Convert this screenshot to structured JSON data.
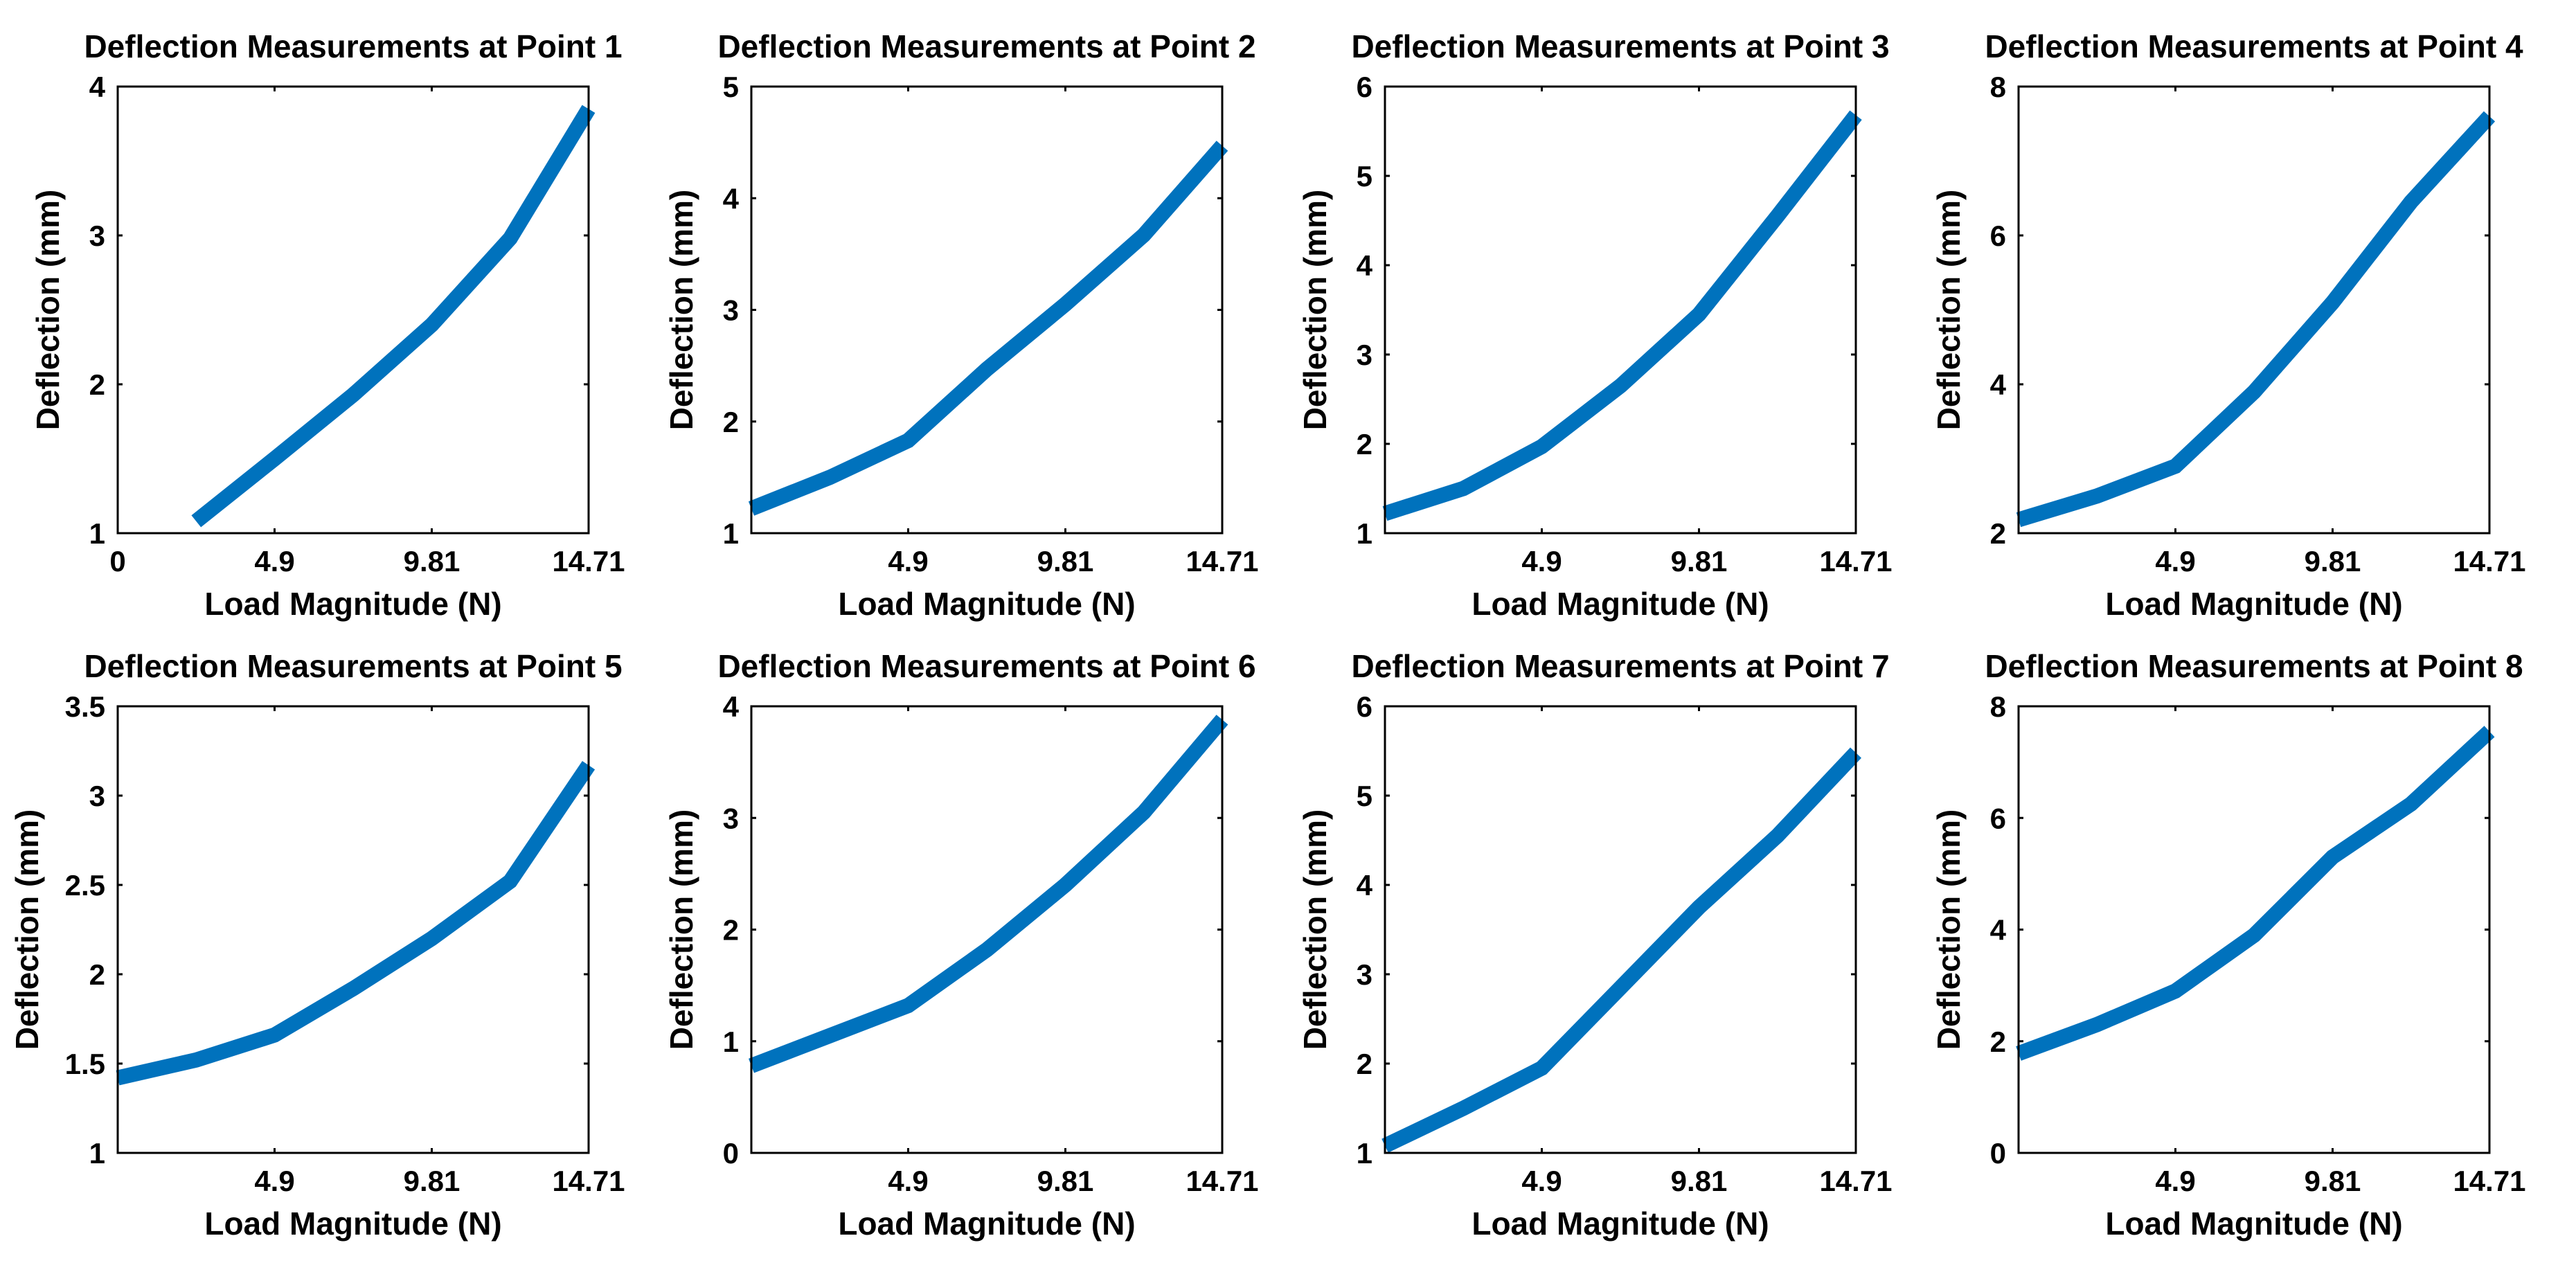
{
  "colors": {
    "line": "#0072BD",
    "axis": "#000000",
    "background": "#ffffff"
  },
  "chart_data": [
    {
      "type": "line",
      "title": "Deflection Measurements at Point 1",
      "xlabel": "Load Magnitude (N)",
      "ylabel": "Deflection (mm)",
      "xlim": [
        0,
        14.71
      ],
      "ylim": [
        1,
        4
      ],
      "xticks": [
        0,
        4.9,
        9.81,
        14.71
      ],
      "xtick_labels": [
        "0",
        "4.9",
        "9.81",
        "14.71"
      ],
      "yticks": [
        1,
        2,
        3,
        4
      ],
      "ytick_labels": [
        "1",
        "2",
        "3",
        "4"
      ],
      "grid": false,
      "series": [
        {
          "name": "Point 1",
          "x": [
            2.45,
            4.9,
            7.36,
            9.81,
            12.26,
            14.71
          ],
          "y": [
            1.08,
            1.5,
            1.93,
            2.4,
            2.98,
            3.85
          ]
        }
      ]
    },
    {
      "type": "line",
      "title": "Deflection Measurements at Point 2",
      "xlabel": "Load Magnitude (N)",
      "ylabel": "Deflection (mm)",
      "xlim": [
        0,
        14.71
      ],
      "ylim": [
        1,
        5
      ],
      "xticks": [
        4.9,
        9.81,
        14.71
      ],
      "xtick_labels": [
        "4.9",
        "9.81",
        "14.71"
      ],
      "yticks": [
        1,
        2,
        3,
        4,
        5
      ],
      "ytick_labels": [
        "1",
        "2",
        "3",
        "4",
        "5"
      ],
      "grid": false,
      "series": [
        {
          "name": "Point 2",
          "x": [
            0,
            2.45,
            4.9,
            7.36,
            9.81,
            12.26,
            14.71
          ],
          "y": [
            1.22,
            1.5,
            1.83,
            2.47,
            3.05,
            3.67,
            4.47
          ]
        }
      ]
    },
    {
      "type": "line",
      "title": "Deflection Measurements at Point 3",
      "xlabel": "Load Magnitude (N)",
      "ylabel": "Deflection (mm)",
      "xlim": [
        0,
        14.71
      ],
      "ylim": [
        1,
        6
      ],
      "xticks": [
        4.9,
        9.81,
        14.71
      ],
      "xtick_labels": [
        "4.9",
        "9.81",
        "14.71"
      ],
      "yticks": [
        1,
        2,
        3,
        4,
        5,
        6
      ],
      "ytick_labels": [
        "1",
        "2",
        "3",
        "4",
        "5",
        "6"
      ],
      "grid": false,
      "series": [
        {
          "name": "Point 3",
          "x": [
            0,
            2.45,
            4.9,
            7.36,
            9.81,
            12.26,
            14.71
          ],
          "y": [
            1.22,
            1.5,
            1.97,
            2.65,
            3.45,
            4.55,
            5.68
          ]
        }
      ]
    },
    {
      "type": "line",
      "title": "Deflection Measurements at Point 4",
      "xlabel": "Load Magnitude (N)",
      "ylabel": "Deflection (mm)",
      "xlim": [
        0,
        14.71
      ],
      "ylim": [
        2,
        8
      ],
      "xticks": [
        4.9,
        9.81,
        14.71
      ],
      "xtick_labels": [
        "4.9",
        "9.81",
        "14.71"
      ],
      "yticks": [
        2,
        4,
        6,
        8
      ],
      "ytick_labels": [
        "2",
        "4",
        "6",
        "8"
      ],
      "grid": false,
      "series": [
        {
          "name": "Point 4",
          "x": [
            0,
            2.45,
            4.9,
            7.36,
            9.81,
            12.26,
            14.71
          ],
          "y": [
            2.18,
            2.5,
            2.9,
            3.9,
            5.1,
            6.45,
            7.6
          ]
        }
      ]
    },
    {
      "type": "line",
      "title": "Deflection Measurements at Point 5",
      "xlabel": "Load Magnitude (N)",
      "ylabel": "Deflection (mm)",
      "xlim": [
        0,
        14.71
      ],
      "ylim": [
        1,
        3.5
      ],
      "xticks": [
        4.9,
        9.81,
        14.71
      ],
      "xtick_labels": [
        "4.9",
        "9.81",
        "14.71"
      ],
      "yticks": [
        1,
        1.5,
        2,
        2.5,
        3,
        3.5
      ],
      "ytick_labels": [
        "1",
        "1.5",
        "2",
        "2.5",
        "3",
        "3.5"
      ],
      "grid": false,
      "series": [
        {
          "name": "Point 5",
          "x": [
            0,
            2.45,
            4.9,
            7.36,
            9.81,
            12.26,
            14.71
          ],
          "y": [
            1.42,
            1.52,
            1.66,
            1.92,
            2.2,
            2.52,
            3.17
          ]
        }
      ]
    },
    {
      "type": "line",
      "title": "Deflection Measurements at Point 6",
      "xlabel": "Load Magnitude (N)",
      "ylabel": "Deflection (mm)",
      "xlim": [
        0,
        14.71
      ],
      "ylim": [
        0,
        4
      ],
      "xticks": [
        4.9,
        9.81,
        14.71
      ],
      "xtick_labels": [
        "4.9",
        "9.81",
        "14.71"
      ],
      "yticks": [
        0,
        1,
        2,
        3,
        4
      ],
      "ytick_labels": [
        "0",
        "1",
        "2",
        "3",
        "4"
      ],
      "grid": false,
      "series": [
        {
          "name": "Point 6",
          "x": [
            0,
            2.45,
            4.9,
            7.36,
            9.81,
            12.26,
            14.71
          ],
          "y": [
            0.78,
            1.05,
            1.32,
            1.82,
            2.4,
            3.05,
            3.88
          ]
        }
      ]
    },
    {
      "type": "line",
      "title": "Deflection Measurements at Point 7",
      "xlabel": "Load Magnitude (N)",
      "ylabel": "Deflection (mm)",
      "xlim": [
        0,
        14.71
      ],
      "ylim": [
        1,
        6
      ],
      "xticks": [
        4.9,
        9.81,
        14.71
      ],
      "xtick_labels": [
        "4.9",
        "9.81",
        "14.71"
      ],
      "yticks": [
        1,
        2,
        3,
        4,
        5,
        6
      ],
      "ytick_labels": [
        "1",
        "2",
        "3",
        "4",
        "5",
        "6"
      ],
      "grid": false,
      "series": [
        {
          "name": "Point 7",
          "x": [
            0,
            2.45,
            4.9,
            7.36,
            9.81,
            12.26,
            14.71
          ],
          "y": [
            1.08,
            1.5,
            1.95,
            2.85,
            3.75,
            4.55,
            5.48
          ]
        }
      ]
    },
    {
      "type": "line",
      "title": "Deflection Measurements at Point 8",
      "xlabel": "Load Magnitude (N)",
      "ylabel": "Deflection (mm)",
      "xlim": [
        0,
        14.71
      ],
      "ylim": [
        0,
        8
      ],
      "xticks": [
        4.9,
        9.81,
        14.71
      ],
      "xtick_labels": [
        "4.9",
        "9.81",
        "14.71"
      ],
      "yticks": [
        0,
        2,
        4,
        6,
        8
      ],
      "ytick_labels": [
        "0",
        "2",
        "4",
        "6",
        "8"
      ],
      "grid": false,
      "series": [
        {
          "name": "Point 8",
          "x": [
            0,
            2.45,
            4.9,
            7.36,
            9.81,
            12.26,
            14.71
          ],
          "y": [
            1.78,
            2.3,
            2.9,
            3.9,
            5.3,
            6.25,
            7.55
          ]
        }
      ]
    }
  ]
}
